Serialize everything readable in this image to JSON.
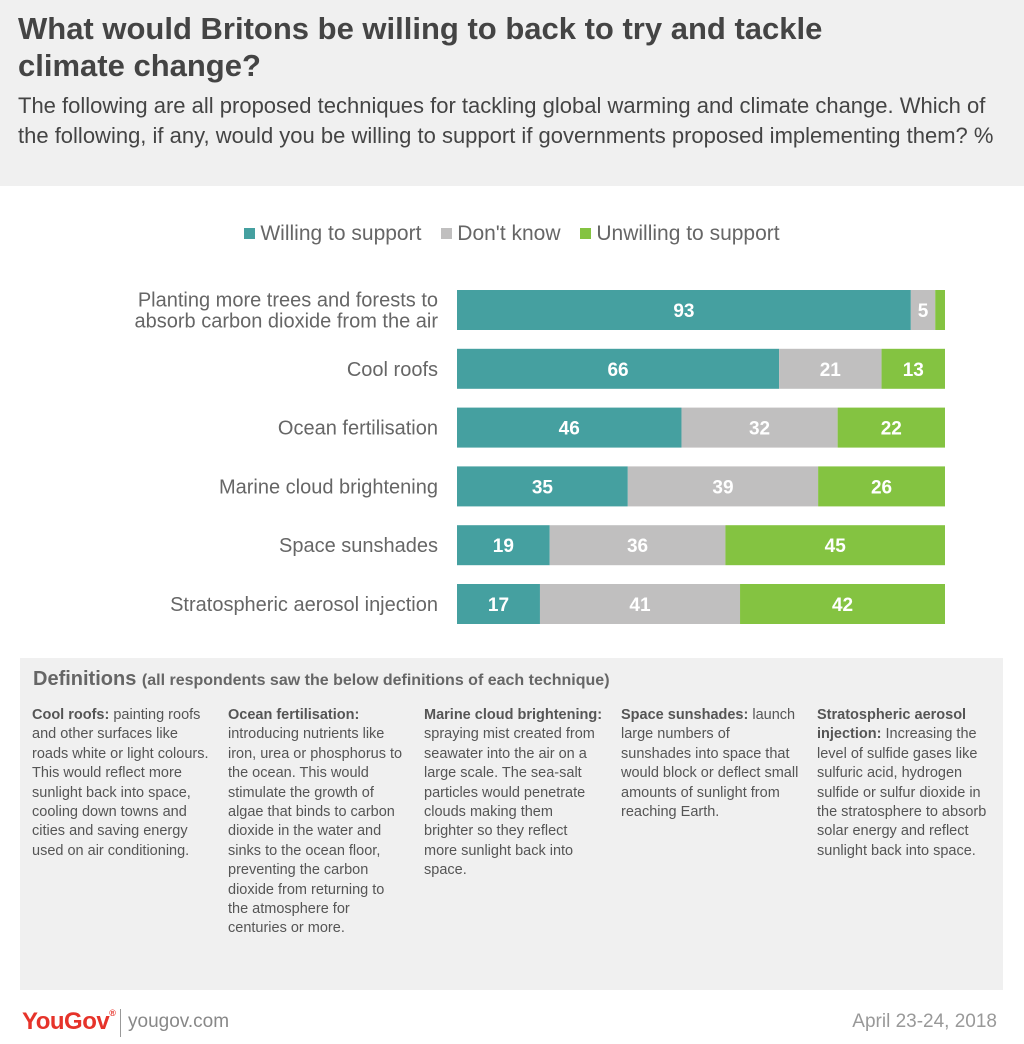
{
  "title": "What would Britons be willing to back to try and tackle climate change?",
  "subtitle": "The following are all proposed techniques for tackling global warming and climate change. Which of the following, if any, would you be willing to support if governments proposed implementing them? %",
  "colors": {
    "willing": "#45a0a0",
    "dont_know": "#c0bfbf",
    "unwilling": "#84c341",
    "label_text": "#ffffff"
  },
  "chart_data": {
    "type": "bar",
    "orientation": "horizontal",
    "stacked": true,
    "legend_position": "top",
    "categories": [
      "Planting more trees and forests to absorb carbon dioxide from the air",
      "Cool roofs",
      "Ocean fertilisation",
      "Marine cloud brightening",
      "Space sunshades",
      "Stratospheric aerosol injection"
    ],
    "series": [
      {
        "name": "Willing to support",
        "values": [
          93,
          66,
          46,
          35,
          19,
          17
        ]
      },
      {
        "name": "Don't know",
        "values": [
          5,
          21,
          32,
          39,
          36,
          41
        ]
      },
      {
        "name": "Unwilling to support",
        "values": [
          null,
          13,
          22,
          26,
          45,
          42
        ]
      }
    ],
    "xlim": [
      0,
      100
    ]
  },
  "definitions": {
    "heading": "Definitions",
    "heading_sub": "(all respondents saw the below definitions of each technique)",
    "items": [
      {
        "term": "Cool roofs:",
        "text": "painting roofs and other surfaces like roads white or light colours. This would reflect more sunlight back into space, cooling down towns and cities and saving energy used on air conditioning."
      },
      {
        "term": "Ocean fertilisation:",
        "text": "introducing nutrients like iron, urea or phosphorus to the ocean. This would stimulate the growth of algae that binds to carbon dioxide in the water and sinks to the ocean floor, preventing the carbon dioxide from returning to the atmosphere for centuries or more."
      },
      {
        "term": "Marine cloud brightening:",
        "text": "spraying mist created from seawater into the air on a large scale. The sea-salt particles would penetrate clouds making them brighter so they reflect more sunlight back into space."
      },
      {
        "term": "Space sunshades:",
        "text": "launch large numbers of sunshades into space that would block or deflect small amounts of sunlight from reaching Earth."
      },
      {
        "term": "Stratospheric aerosol injection:",
        "text": "Increasing the level of sulfide gases like sulfuric acid, hydrogen sulfide or sulfur dioxide in the stratosphere to absorb solar energy and reflect sunlight back into space."
      }
    ]
  },
  "footer": {
    "logo": "YouGov",
    "logo_mark": "®",
    "url": "yougov.com",
    "date": "April 23-24, 2018"
  }
}
